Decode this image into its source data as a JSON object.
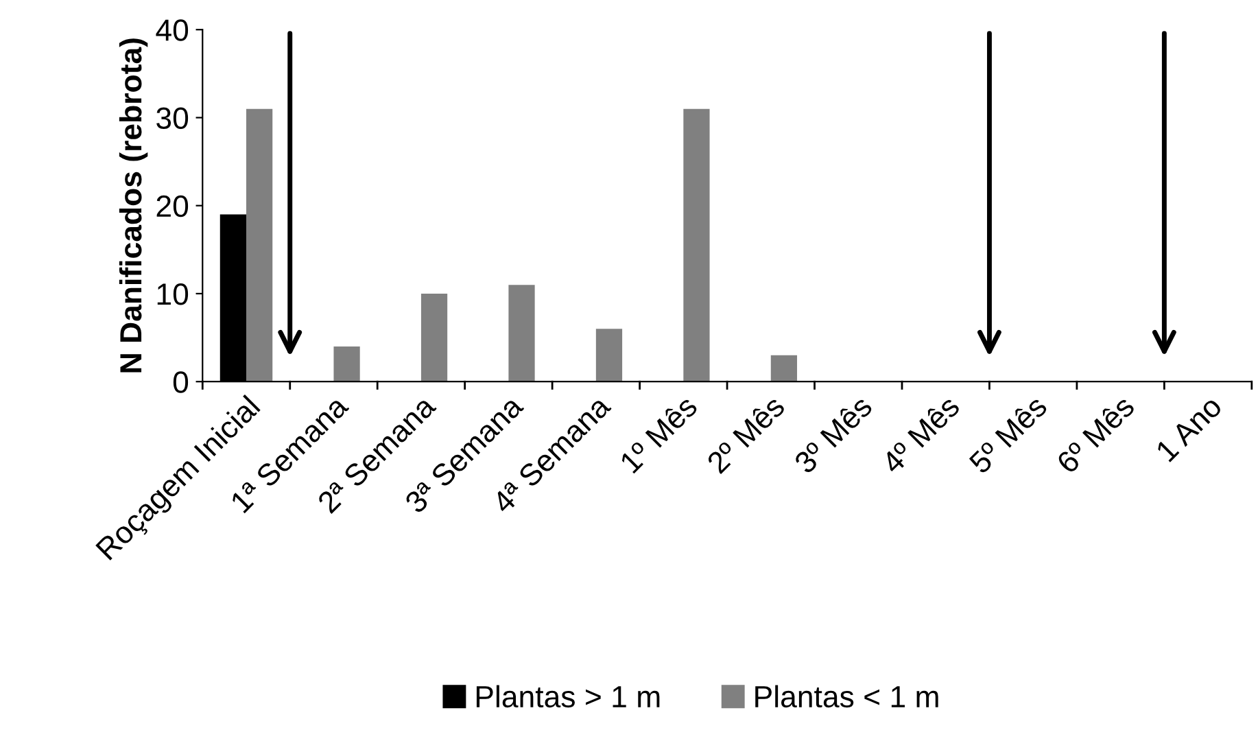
{
  "chart_data": {
    "type": "bar",
    "ylabel": "N Danificados (rebrota)",
    "categories": [
      "Roçagem Inicial",
      "1ª Semana",
      "2ª Semana",
      "3ª Semana",
      "4ª Semana",
      "1º Mês",
      "2º Mês",
      "3º Mês",
      "4º Mês",
      "5º Mês",
      "6º Mês",
      "1 Ano"
    ],
    "series": [
      {
        "name": "Plantas > 1 m",
        "color": "#000000",
        "values": [
          19,
          0,
          0,
          0,
          0,
          0,
          0,
          0,
          0,
          0,
          0,
          0
        ]
      },
      {
        "name": "Plantas < 1 m",
        "color": "#808080",
        "values": [
          31,
          4,
          10,
          11,
          6,
          31,
          3,
          0,
          0,
          0,
          0,
          0
        ]
      }
    ],
    "ylim": [
      0,
      40
    ],
    "yticks": [
      0,
      10,
      20,
      30,
      40
    ],
    "grid": false,
    "legend": "bottom"
  }
}
